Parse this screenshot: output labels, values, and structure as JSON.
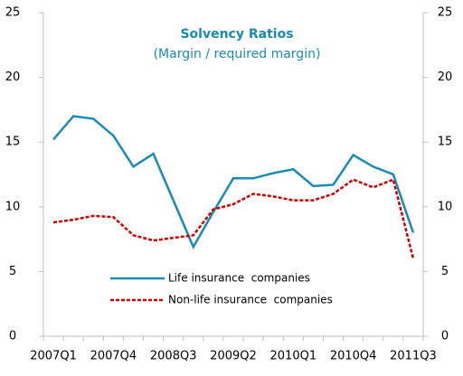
{
  "chart_data": {
    "type": "line",
    "title": "Solvency Ratios",
    "subtitle": "(Margin / required margin)",
    "categories": [
      "2007Q1",
      null,
      null,
      "2007Q4",
      null,
      null,
      "2008Q3",
      null,
      null,
      "2009Q2",
      null,
      null,
      "2010Q1",
      null,
      null,
      "2010Q4",
      null,
      null,
      "2011Q3"
    ],
    "series": [
      {
        "name": "Life insurance  companies",
        "color": "#1a8bb0",
        "dash": false,
        "values": [
          15.2,
          17.0,
          16.8,
          15.5,
          13.1,
          14.1,
          10.5,
          6.9,
          9.6,
          12.2,
          12.2,
          12.6,
          12.9,
          11.6,
          11.7,
          14.0,
          13.1,
          12.5,
          8.0
        ]
      },
      {
        "name": "Non-life insurance  companies",
        "color": "#cc0000",
        "dash": true,
        "values": [
          8.8,
          9.0,
          9.3,
          9.2,
          7.8,
          7.4,
          7.6,
          7.8,
          9.8,
          10.2,
          11.0,
          10.8,
          10.5,
          10.5,
          11.0,
          12.1,
          11.5,
          12.1,
          6.0
        ]
      }
    ],
    "ylim": [
      0,
      25
    ],
    "yticks": [
      0,
      5,
      10,
      15,
      20,
      25
    ],
    "y2lim": [
      0,
      25
    ],
    "y2ticks": [
      0,
      5,
      10,
      15,
      20,
      25
    ],
    "grid": false
  }
}
